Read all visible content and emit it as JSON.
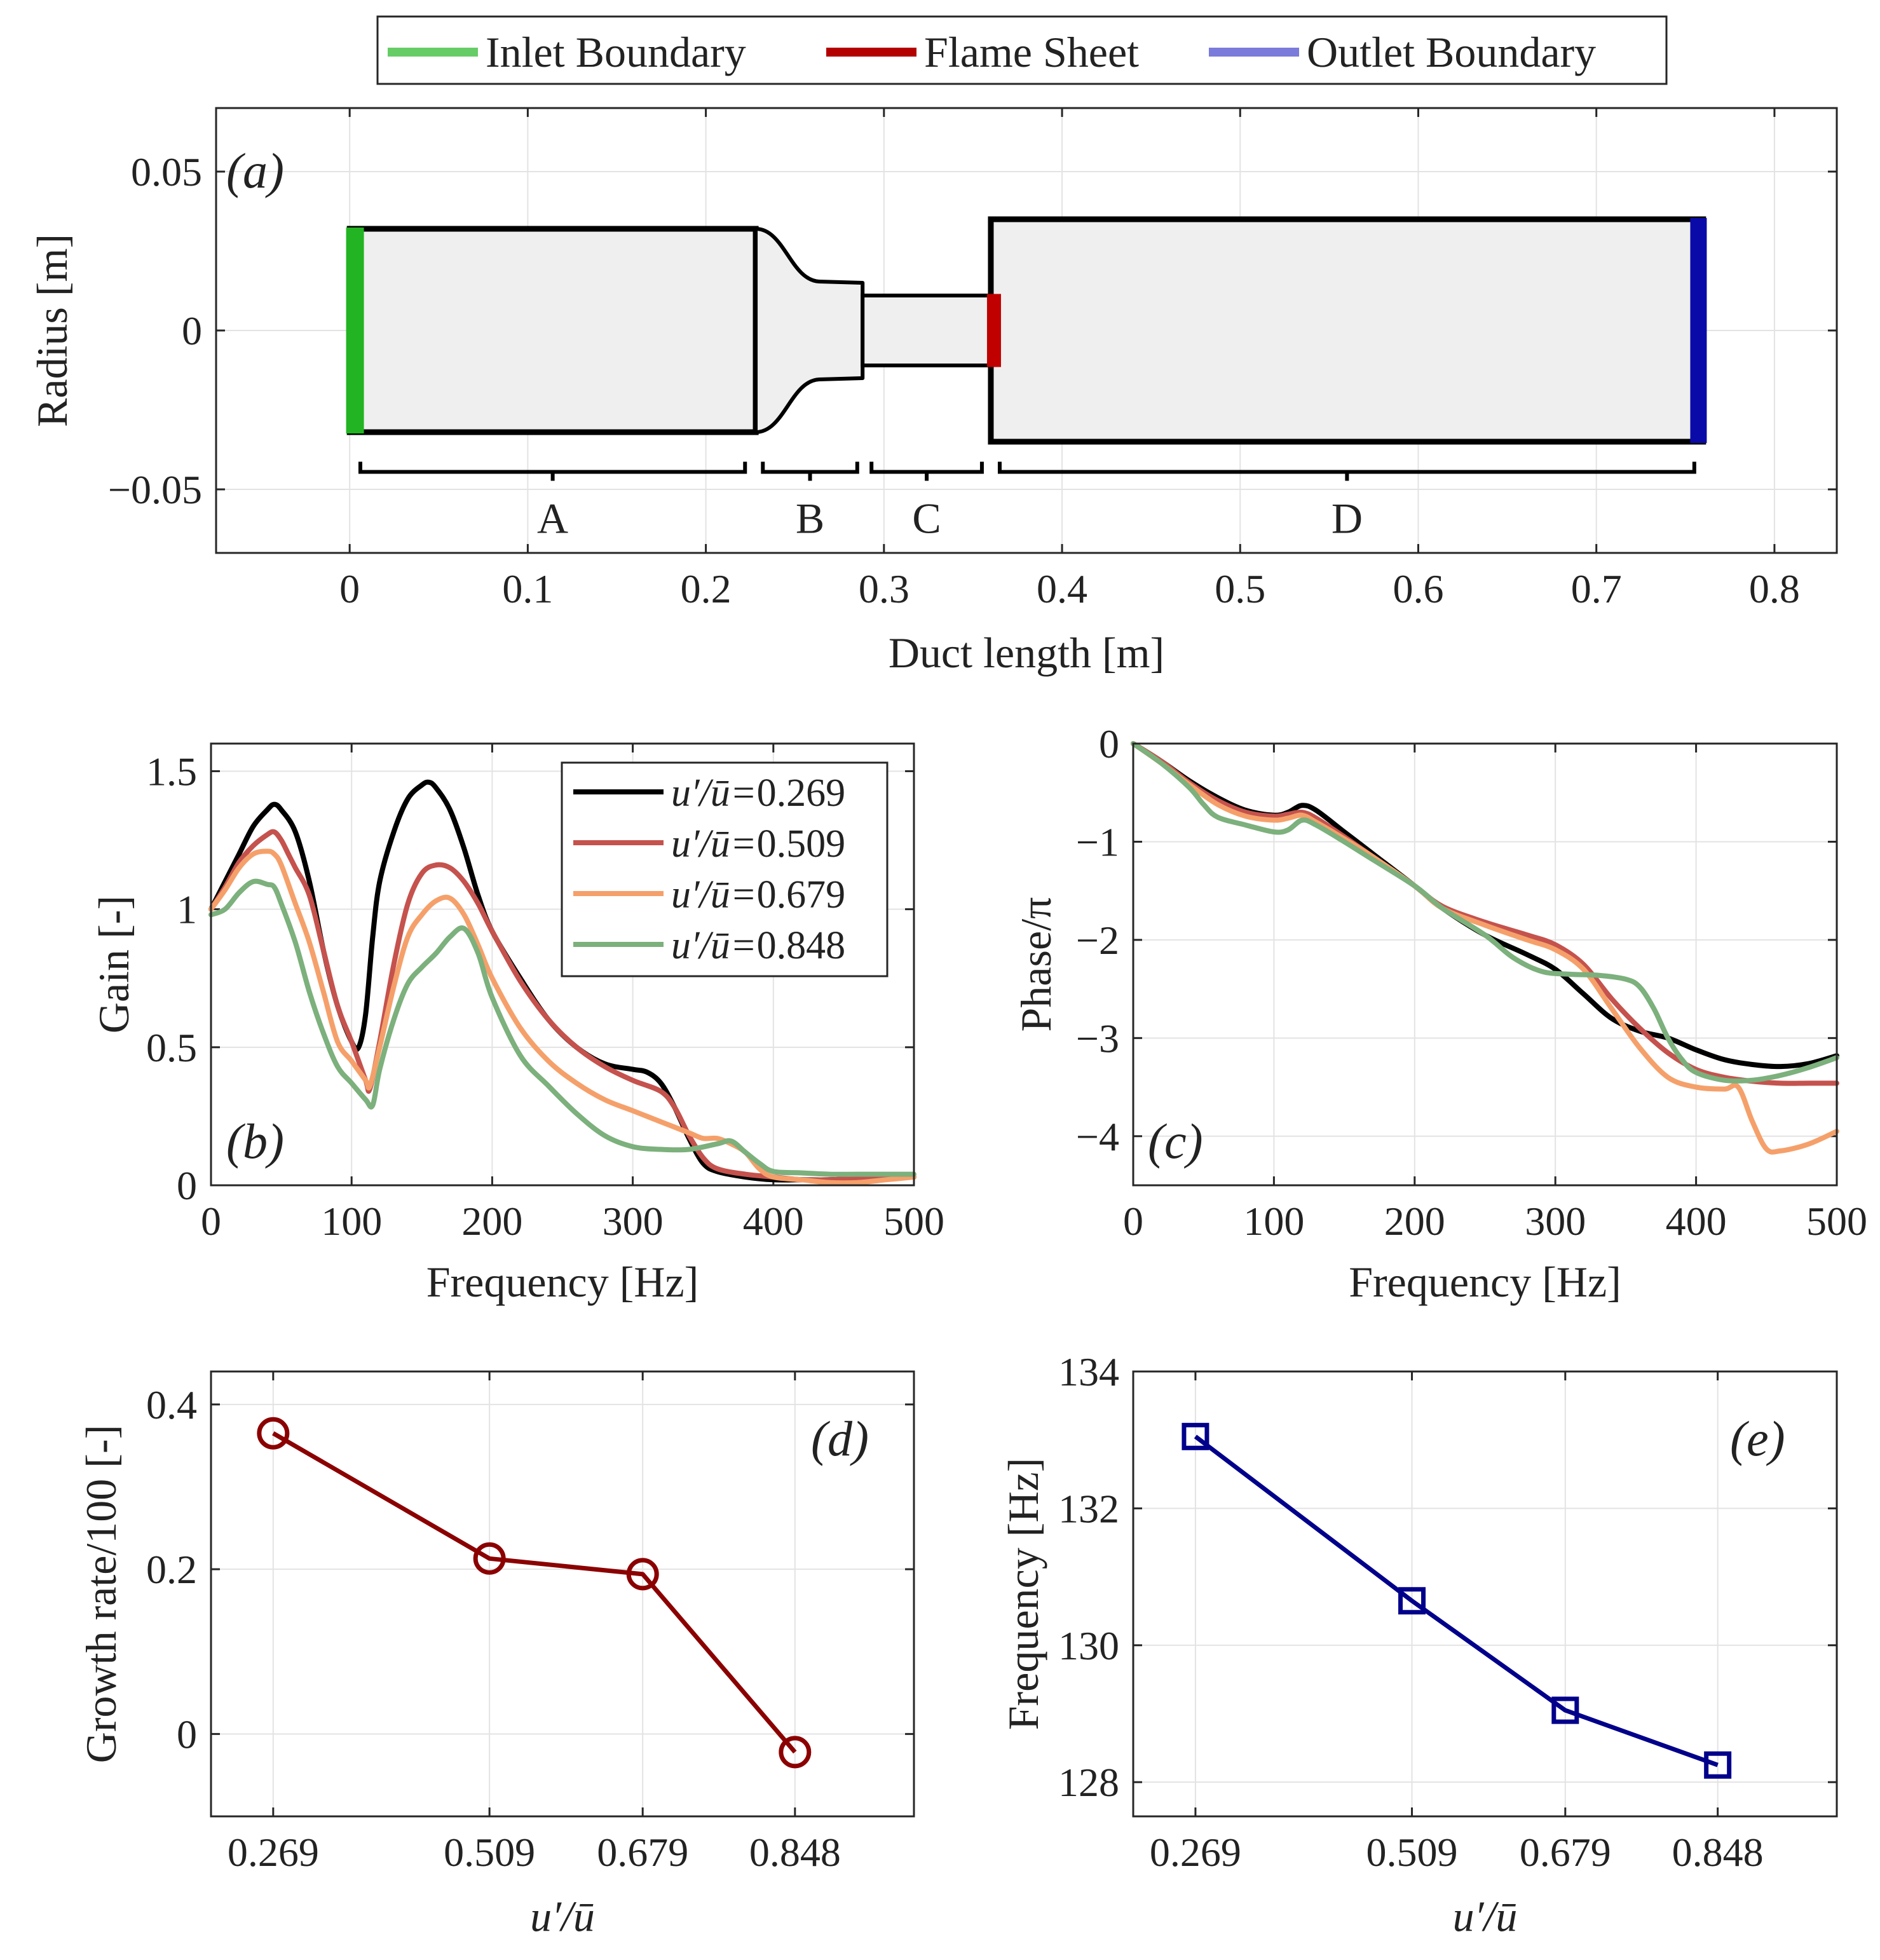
{
  "legend": {
    "inlet": "Inlet Boundary",
    "flame": "Flame Sheet",
    "outlet": "Outlet Boundary",
    "colors": {
      "inlet": "#66cc66",
      "flame": "#b30000",
      "outlet": "#7b7bdb"
    }
  },
  "chart_data": [
    {
      "id": "a",
      "type": "diagram",
      "panel_label": "(a)",
      "xlabel": "Duct length [m]",
      "ylabel": "Radius [m]",
      "xlim": [
        -0.075,
        0.835
      ],
      "ylim": [
        -0.07,
        0.07
      ],
      "xticks": [
        0,
        0.1,
        0.2,
        0.3,
        0.4,
        0.5,
        0.6,
        0.7,
        0.8
      ],
      "xtick_labels": [
        "0",
        "0.1",
        "0.2",
        "0.3",
        "0.4",
        "0.5",
        "0.6",
        "0.7",
        "0.8"
      ],
      "yticks": [
        -0.05,
        0,
        0.05
      ],
      "ytick_labels": [
        "−0.05",
        "0",
        "0.05"
      ],
      "geometry": {
        "A": {
          "x": [
            0,
            0.228
          ],
          "r": 0.032
        },
        "B": {
          "x": [
            0.228,
            0.288
          ],
          "r_start": 0.032,
          "r_end": 0.015
        },
        "C": {
          "x": [
            0.288,
            0.36
          ],
          "r": 0.011
        },
        "D": {
          "x": [
            0.36,
            0.76
          ],
          "r": 0.035
        },
        "inlet_x": 0.003,
        "flame_x": 0.36,
        "outlet_x": 0.757
      },
      "segments": [
        {
          "label": "A",
          "x": [
            0.006,
            0.222
          ]
        },
        {
          "label": "B",
          "x": [
            0.232,
            0.285
          ]
        },
        {
          "label": "C",
          "x": [
            0.293,
            0.355
          ]
        },
        {
          "label": "D",
          "x": [
            0.365,
            0.755
          ]
        }
      ]
    },
    {
      "id": "b",
      "type": "line",
      "panel_label": "(b)",
      "xlabel": "Frequency  [Hz]",
      "ylabel": "Gain [-]",
      "xlim": [
        0,
        500
      ],
      "ylim": [
        0,
        1.6
      ],
      "xticks": [
        0,
        100,
        200,
        300,
        400,
        500
      ],
      "yticks": [
        0,
        0.5,
        1,
        1.5
      ],
      "ytick_labels": [
        "0",
        "0.5",
        "1",
        "1.5"
      ],
      "legend_prefix": "u′/ū=",
      "series": [
        {
          "name": "0.269",
          "color": "#000000",
          "x": [
            0,
            10,
            20,
            30,
            40,
            45,
            50,
            60,
            70,
            80,
            90,
            100,
            105,
            110,
            115,
            120,
            130,
            140,
            150,
            155,
            160,
            170,
            180,
            190,
            200,
            220,
            240,
            260,
            280,
            300,
            310,
            320,
            330,
            340,
            350,
            360,
            380,
            400,
            420,
            440,
            460,
            480,
            500
          ],
          "y": [
            1.0,
            1.1,
            1.2,
            1.3,
            1.36,
            1.38,
            1.36,
            1.28,
            1.1,
            0.85,
            0.65,
            0.52,
            0.5,
            0.62,
            0.9,
            1.1,
            1.28,
            1.4,
            1.45,
            1.46,
            1.44,
            1.36,
            1.22,
            1.05,
            0.92,
            0.75,
            0.6,
            0.5,
            0.44,
            0.42,
            0.41,
            0.37,
            0.28,
            0.17,
            0.08,
            0.05,
            0.03,
            0.02,
            0.02,
            0.02,
            0.025,
            0.03,
            0.03
          ]
        },
        {
          "name": "0.509",
          "color": "#c5524d",
          "x": [
            0,
            10,
            20,
            30,
            40,
            45,
            50,
            55,
            60,
            70,
            80,
            90,
            100,
            110,
            113,
            120,
            130,
            140,
            150,
            160,
            170,
            180,
            190,
            200,
            220,
            240,
            260,
            280,
            300,
            320,
            330,
            340,
            350,
            360,
            380,
            400,
            420,
            440,
            460,
            480,
            500
          ],
          "y": [
            1.0,
            1.08,
            1.17,
            1.23,
            1.27,
            1.28,
            1.25,
            1.2,
            1.15,
            1.05,
            0.85,
            0.65,
            0.52,
            0.38,
            0.35,
            0.52,
            0.8,
            1.02,
            1.13,
            1.16,
            1.15,
            1.1,
            1.02,
            0.92,
            0.74,
            0.6,
            0.5,
            0.43,
            0.38,
            0.34,
            0.28,
            0.18,
            0.1,
            0.06,
            0.04,
            0.03,
            0.02,
            0.02,
            0.025,
            0.03,
            0.03
          ]
        },
        {
          "name": "0.679",
          "color": "#f5a06a",
          "x": [
            0,
            10,
            20,
            30,
            40,
            45,
            50,
            60,
            70,
            80,
            90,
            100,
            110,
            113,
            120,
            130,
            140,
            150,
            160,
            170,
            180,
            190,
            200,
            220,
            240,
            260,
            280,
            300,
            320,
            340,
            350,
            360,
            370,
            380,
            390,
            400,
            420,
            440,
            460,
            480,
            500
          ],
          "y": [
            1.0,
            1.07,
            1.15,
            1.2,
            1.21,
            1.2,
            1.16,
            1.02,
            0.88,
            0.7,
            0.52,
            0.45,
            0.38,
            0.36,
            0.5,
            0.72,
            0.9,
            0.98,
            1.03,
            1.04,
            0.98,
            0.87,
            0.75,
            0.57,
            0.45,
            0.37,
            0.31,
            0.27,
            0.23,
            0.19,
            0.17,
            0.17,
            0.15,
            0.12,
            0.06,
            0.03,
            0.02,
            0.01,
            0.01,
            0.02,
            0.03
          ]
        },
        {
          "name": "0.848",
          "color": "#7cb07c",
          "x": [
            0,
            10,
            20,
            30,
            40,
            45,
            50,
            60,
            70,
            80,
            90,
            100,
            110,
            115,
            120,
            130,
            140,
            150,
            160,
            170,
            180,
            190,
            200,
            220,
            240,
            260,
            280,
            300,
            320,
            340,
            360,
            370,
            380,
            390,
            400,
            420,
            440,
            460,
            480,
            500
          ],
          "y": [
            0.98,
            1.0,
            1.06,
            1.1,
            1.09,
            1.08,
            1.02,
            0.88,
            0.7,
            0.55,
            0.43,
            0.37,
            0.31,
            0.29,
            0.42,
            0.6,
            0.73,
            0.79,
            0.84,
            0.9,
            0.93,
            0.84,
            0.68,
            0.47,
            0.36,
            0.26,
            0.18,
            0.14,
            0.13,
            0.13,
            0.15,
            0.16,
            0.12,
            0.08,
            0.05,
            0.045,
            0.04,
            0.04,
            0.04,
            0.04
          ]
        }
      ]
    },
    {
      "id": "c",
      "type": "line",
      "panel_label": "(c)",
      "xlabel": "Frequency  [Hz]",
      "ylabel": "Phase/π",
      "xlim": [
        0,
        500
      ],
      "ylim": [
        -4.5,
        0
      ],
      "xticks": [
        0,
        100,
        200,
        300,
        400,
        500
      ],
      "yticks": [
        0,
        -1,
        -2,
        -3,
        -4
      ],
      "ytick_labels": [
        "0",
        "−1",
        "−2",
        "−3",
        "−4"
      ],
      "series": [
        {
          "name": "0.269",
          "color": "#000000",
          "x": [
            0,
            20,
            40,
            60,
            80,
            100,
            110,
            120,
            130,
            150,
            170,
            200,
            220,
            250,
            280,
            300,
            320,
            340,
            360,
            380,
            400,
            420,
            440,
            460,
            480,
            500
          ],
          "y": [
            0,
            -0.18,
            -0.38,
            -0.55,
            -0.68,
            -0.73,
            -0.7,
            -0.63,
            -0.68,
            -0.9,
            -1.12,
            -1.45,
            -1.68,
            -1.95,
            -2.15,
            -2.3,
            -2.55,
            -2.8,
            -2.93,
            -3.0,
            -3.12,
            -3.22,
            -3.27,
            -3.29,
            -3.26,
            -3.18
          ]
        },
        {
          "name": "0.509",
          "color": "#c5524d",
          "x": [
            0,
            20,
            40,
            60,
            80,
            100,
            110,
            120,
            130,
            150,
            170,
            200,
            220,
            250,
            280,
            300,
            320,
            340,
            360,
            380,
            400,
            420,
            440,
            460,
            480,
            500
          ],
          "y": [
            0,
            -0.18,
            -0.4,
            -0.58,
            -0.7,
            -0.74,
            -0.72,
            -0.7,
            -0.76,
            -0.95,
            -1.15,
            -1.45,
            -1.66,
            -1.82,
            -1.95,
            -2.05,
            -2.25,
            -2.6,
            -2.9,
            -3.15,
            -3.32,
            -3.4,
            -3.44,
            -3.46,
            -3.46,
            -3.46
          ]
        },
        {
          "name": "0.679",
          "color": "#f5a06a",
          "x": [
            0,
            20,
            40,
            60,
            80,
            100,
            110,
            120,
            130,
            150,
            170,
            200,
            220,
            250,
            280,
            300,
            320,
            340,
            360,
            380,
            400,
            420,
            430,
            440,
            450,
            460,
            480,
            500
          ],
          "y": [
            0,
            -0.2,
            -0.42,
            -0.62,
            -0.74,
            -0.78,
            -0.76,
            -0.73,
            -0.8,
            -0.97,
            -1.15,
            -1.45,
            -1.68,
            -1.85,
            -2.0,
            -2.1,
            -2.3,
            -2.7,
            -3.1,
            -3.4,
            -3.5,
            -3.52,
            -3.5,
            -3.85,
            -4.13,
            -4.15,
            -4.08,
            -3.95
          ]
        },
        {
          "name": "0.848",
          "color": "#7cb07c",
          "x": [
            0,
            20,
            40,
            50,
            60,
            80,
            100,
            110,
            120,
            130,
            150,
            170,
            200,
            220,
            250,
            270,
            290,
            310,
            330,
            350,
            360,
            370,
            380,
            390,
            400,
            420,
            440,
            460,
            480,
            500
          ],
          "y": [
            0,
            -0.2,
            -0.45,
            -0.62,
            -0.75,
            -0.83,
            -0.9,
            -0.88,
            -0.78,
            -0.83,
            -1.0,
            -1.18,
            -1.45,
            -1.68,
            -1.95,
            -2.18,
            -2.32,
            -2.35,
            -2.36,
            -2.4,
            -2.48,
            -2.7,
            -3.0,
            -3.22,
            -3.35,
            -3.43,
            -3.43,
            -3.38,
            -3.3,
            -3.2
          ]
        }
      ]
    },
    {
      "id": "d",
      "type": "line",
      "panel_label": "(d)",
      "xlabel": "u′/ū",
      "ylabel": "Growth rate/100 [-]",
      "xlim": [
        0.2,
        0.98
      ],
      "ylim": [
        -0.1,
        0.44
      ],
      "xticks": [
        0.269,
        0.509,
        0.679,
        0.848
      ],
      "xtick_labels": [
        "0.269",
        "0.509",
        "0.679",
        "0.848"
      ],
      "yticks": [
        0,
        0.2,
        0.4
      ],
      "ytick_labels": [
        "0",
        "0.2",
        "0.4"
      ],
      "marker": "circle",
      "series": [
        {
          "name": "growth-rate",
          "color": "#8b0000",
          "x": [
            0.269,
            0.509,
            0.679,
            0.848
          ],
          "y": [
            0.365,
            0.213,
            0.194,
            -0.022
          ]
        }
      ]
    },
    {
      "id": "e",
      "type": "line",
      "panel_label": "(e)",
      "xlabel": "u′/ū",
      "ylabel": "Frequency [Hz]",
      "xlim": [
        0.2,
        0.98
      ],
      "ylim": [
        127.5,
        134
      ],
      "xticks": [
        0.269,
        0.509,
        0.679,
        0.848
      ],
      "xtick_labels": [
        "0.269",
        "0.509",
        "0.679",
        "0.848"
      ],
      "yticks": [
        128,
        130,
        132,
        134
      ],
      "ytick_labels": [
        "128",
        "130",
        "132",
        "134"
      ],
      "marker": "square",
      "series": [
        {
          "name": "frequency",
          "color": "#00008b",
          "x": [
            0.269,
            0.509,
            0.679,
            0.848
          ],
          "y": [
            133.05,
            130.65,
            129.05,
            128.25
          ]
        }
      ]
    }
  ]
}
